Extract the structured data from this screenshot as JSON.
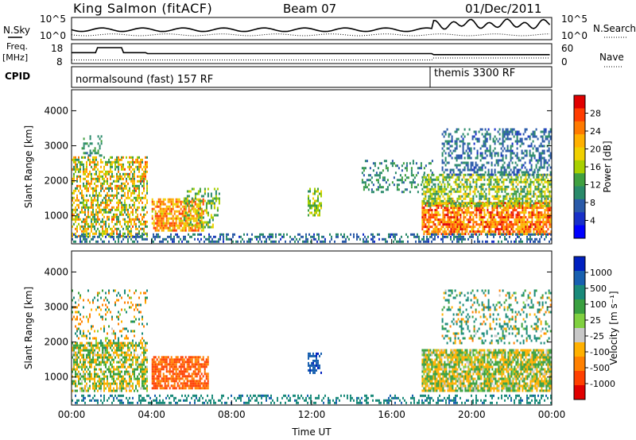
{
  "header": {
    "station": "King Salmon (fitACF)",
    "beam": "Beam 07",
    "date": "01/Dec/2011"
  },
  "status_panels": {
    "left_labels": {
      "nsky": "N.Sky",
      "freq_line1": "Freq.",
      "freq_line2": "[MHz]",
      "cpid": "CPID"
    },
    "right_labels": {
      "nsearch": "N.Search",
      "nave": "Nave"
    },
    "noise_ticks_left": [
      "10^5",
      "10^0"
    ],
    "noise_ticks_right": [
      "10^5",
      "10^0"
    ],
    "freq_ticks": [
      "18",
      "8"
    ],
    "nave_ticks": [
      "60",
      "0"
    ],
    "cpid_entries": [
      {
        "text": "normalsound (fast) 157 RF",
        "start_hour": 0
      },
      {
        "text": "themis 3300 RF",
        "start_hour": 18
      }
    ]
  },
  "chart_data": [
    {
      "type": "heatmap",
      "name_key": "power",
      "ylabel": "Slant Range [km]",
      "ylim": [
        200,
        4600
      ],
      "yticks": [
        1000,
        2000,
        3000,
        4000
      ],
      "xlim": [
        0,
        24
      ],
      "colorbar": {
        "label": "Power [dB]",
        "ticks": [
          "28",
          "24",
          "20",
          "16",
          "12",
          "8",
          "4"
        ],
        "range": [
          0,
          30
        ],
        "colors": [
          "#e00000",
          "#ff3c00",
          "#ff7a00",
          "#ffb000",
          "#f0d000",
          "#a8d000",
          "#40a040",
          "#2a8a6a",
          "#2a5aa8",
          "#1830c8",
          "#0000ff"
        ]
      },
      "scatter_regions": [
        {
          "x": [
            0.0,
            3.8
          ],
          "y": [
            400,
            2700
          ],
          "values": [
            8,
            26
          ],
          "density": 0.55
        },
        {
          "x": [
            0.5,
            1.5
          ],
          "y": [
            2700,
            3300
          ],
          "values": [
            6,
            12
          ],
          "density": 0.35
        },
        {
          "x": [
            4.0,
            6.6
          ],
          "y": [
            600,
            1500
          ],
          "values": [
            16,
            28
          ],
          "density": 0.7
        },
        {
          "x": [
            5.6,
            7.4
          ],
          "y": [
            700,
            1800
          ],
          "values": [
            8,
            18
          ],
          "density": 0.35
        },
        {
          "x": [
            11.8,
            12.5
          ],
          "y": [
            1000,
            1800
          ],
          "values": [
            10,
            18
          ],
          "density": 0.5
        },
        {
          "x": [
            14.5,
            18.0
          ],
          "y": [
            1700,
            2600
          ],
          "values": [
            6,
            12
          ],
          "density": 0.25
        },
        {
          "x": [
            17.5,
            24.0
          ],
          "y": [
            500,
            1400
          ],
          "values": [
            18,
            30
          ],
          "density": 0.75
        },
        {
          "x": [
            17.5,
            24.0
          ],
          "y": [
            1300,
            2200
          ],
          "values": [
            8,
            20
          ],
          "density": 0.6
        },
        {
          "x": [
            18.5,
            24.0
          ],
          "y": [
            2200,
            3500
          ],
          "values": [
            4,
            10
          ],
          "density": 0.4
        },
        {
          "x": [
            0.0,
            24.0
          ],
          "y": [
            250,
            500
          ],
          "values": [
            4,
            10
          ],
          "density": 0.4
        }
      ]
    },
    {
      "type": "heatmap",
      "name_key": "velocity",
      "ylabel": "Slant Range [km]",
      "xlabel": "Time UT",
      "ylim": [
        200,
        4600
      ],
      "yticks": [
        1000,
        2000,
        3000,
        4000
      ],
      "xlim": [
        0,
        24
      ],
      "xticks": [
        "00:00",
        "04:00",
        "08:00",
        "12:00",
        "16:00",
        "20:00",
        "00:00"
      ],
      "colorbar": {
        "label": "Velocity [m s⁻¹]",
        "ticks": [
          "1000",
          "500",
          "100",
          "25",
          "-25",
          "-100",
          "-500",
          "-1000"
        ],
        "colors": [
          "#0020c0",
          "#1860b0",
          "#1a8a7a",
          "#3aa040",
          "#80d040",
          "#c8c8c8",
          "#ffb000",
          "#ff8000",
          "#ff4000",
          "#e00000"
        ]
      },
      "scatter_regions": [
        {
          "x": [
            0.0,
            3.8
          ],
          "y": [
            600,
            2000
          ],
          "values": [
            -20,
            20
          ],
          "density": 0.65
        },
        {
          "x": [
            0.0,
            3.8
          ],
          "y": [
            1800,
            3500
          ],
          "values": [
            -60,
            60
          ],
          "density": 0.2
        },
        {
          "x": [
            4.0,
            6.8
          ],
          "y": [
            700,
            1600
          ],
          "values": [
            -150,
            -60
          ],
          "density": 0.75
        },
        {
          "x": [
            11.8,
            12.5
          ],
          "y": [
            1100,
            1700
          ],
          "values": [
            200,
            500
          ],
          "density": 0.6
        },
        {
          "x": [
            17.5,
            24.0
          ],
          "y": [
            600,
            1800
          ],
          "values": [
            -20,
            20
          ],
          "density": 0.8
        },
        {
          "x": [
            18.5,
            24.0
          ],
          "y": [
            2000,
            3500
          ],
          "values": [
            -40,
            100
          ],
          "density": 0.25
        },
        {
          "x": [
            0.0,
            24.0
          ],
          "y": [
            250,
            500
          ],
          "values": [
            25,
            120
          ],
          "density": 0.35
        }
      ]
    }
  ]
}
